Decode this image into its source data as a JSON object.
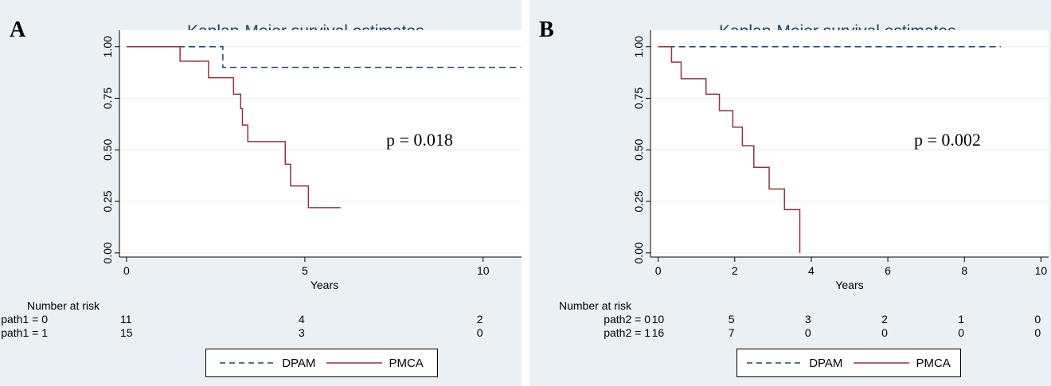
{
  "chart_data": [
    {
      "type": "line",
      "panel_letter": "A",
      "title": "Kaplan-Meier survival estimates",
      "xlabel": "Years",
      "ylabel": "",
      "xlim": [
        -0.2,
        11.3
      ],
      "ylim": [
        -0.02,
        1.08
      ],
      "xticks": [
        0,
        5,
        10
      ],
      "yticks": [
        "0.00",
        "0.25",
        "0.50",
        "0.75",
        "1.00"
      ],
      "grid": true,
      "step": true,
      "annotation": "p = 0.018",
      "series": [
        {
          "name": "DPAM",
          "color": "#1a476f",
          "dash": true,
          "x": [
            0,
            2.7,
            2.7,
            11.2
          ],
          "y": [
            1.0,
            1.0,
            0.9,
            0.9
          ]
        },
        {
          "name": "PMCA",
          "color": "#90353b",
          "dash": false,
          "x": [
            0,
            1.5,
            1.5,
            2.3,
            2.3,
            3.0,
            3.0,
            3.2,
            3.2,
            3.25,
            3.25,
            3.4,
            3.4,
            4.45,
            4.45,
            4.6,
            4.6,
            5.1,
            5.1,
            6.0
          ],
          "y": [
            1.0,
            1.0,
            0.93,
            0.93,
            0.85,
            0.85,
            0.77,
            0.77,
            0.7,
            0.7,
            0.62,
            0.62,
            0.54,
            0.54,
            0.43,
            0.43,
            0.325,
            0.325,
            0.22,
            0.22
          ]
        }
      ],
      "risk_table": {
        "header": "Number at risk",
        "times": [
          0,
          5,
          10
        ],
        "rows": [
          {
            "label": "path1 = 0",
            "values": [
              "11",
              "4",
              "2"
            ]
          },
          {
            "label": "path1 = 1",
            "values": [
              "15",
              "3",
              "0"
            ]
          }
        ]
      },
      "legend": [
        "DPAM",
        "PMCA"
      ]
    },
    {
      "type": "line",
      "panel_letter": "B",
      "title": "Kaplan-Meier survival estimates",
      "xlabel": "Years",
      "ylabel": "",
      "xlim": [
        -0.2,
        10.2
      ],
      "ylim": [
        -0.02,
        1.08
      ],
      "xticks": [
        0,
        2,
        4,
        6,
        8,
        10
      ],
      "yticks": [
        "0.00",
        "0.25",
        "0.50",
        "0.75",
        "1.00"
      ],
      "grid": true,
      "step": true,
      "annotation": "p = 0.002",
      "series": [
        {
          "name": "DPAM",
          "color": "#1a476f",
          "dash": true,
          "x": [
            0,
            8.95
          ],
          "y": [
            1.0,
            1.0
          ]
        },
        {
          "name": "PMCA",
          "color": "#90353b",
          "dash": false,
          "x": [
            0,
            0.35,
            0.35,
            0.6,
            0.6,
            1.25,
            1.25,
            1.6,
            1.6,
            1.95,
            1.95,
            2.2,
            2.2,
            2.5,
            2.5,
            2.9,
            2.9,
            3.3,
            3.3,
            3.7,
            3.7
          ],
          "y": [
            1.0,
            1.0,
            0.925,
            0.925,
            0.845,
            0.845,
            0.77,
            0.77,
            0.69,
            0.69,
            0.61,
            0.61,
            0.52,
            0.52,
            0.415,
            0.415,
            0.31,
            0.31,
            0.21,
            0.21,
            0.0
          ]
        }
      ],
      "risk_table": {
        "header": "Number at risk",
        "times": [
          0,
          2,
          4,
          6,
          8,
          10
        ],
        "rows": [
          {
            "label": "path2 = 0",
            "values": [
              "10",
              "5",
              "3",
              "2",
              "1",
              "0"
            ]
          },
          {
            "label": "path2 = 1",
            "values": [
              "16",
              "7",
              "0",
              "0",
              "0",
              "0"
            ]
          }
        ]
      },
      "legend": [
        "DPAM",
        "PMCA"
      ]
    }
  ]
}
